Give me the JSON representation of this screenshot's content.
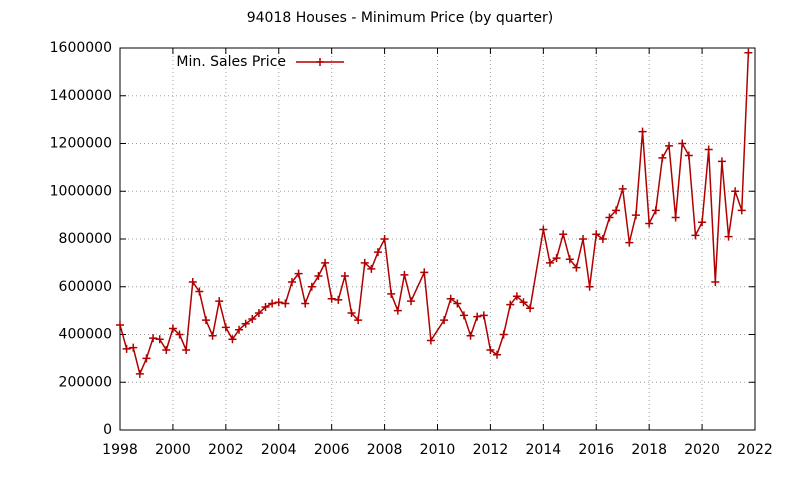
{
  "chart_data": {
    "type": "line",
    "title": "94018 Houses - Minimum Price (by quarter)",
    "x": [
      1998.0,
      1998.25,
      1998.5,
      1998.75,
      1999.0,
      1999.25,
      1999.5,
      1999.75,
      2000.0,
      2000.25,
      2000.5,
      2000.75,
      2001.0,
      2001.25,
      2001.5,
      2001.75,
      2002.0,
      2002.25,
      2002.5,
      2002.75,
      2003.0,
      2003.25,
      2003.5,
      2003.75,
      2004.0,
      2004.25,
      2004.5,
      2004.75,
      2005.0,
      2005.25,
      2005.5,
      2005.75,
      2006.0,
      2006.25,
      2006.5,
      2006.75,
      2007.0,
      2007.25,
      2007.5,
      2007.75,
      2008.0,
      2008.25,
      2008.5,
      2008.75,
      2009.0,
      2009.5,
      2009.75,
      2010.25,
      2010.5,
      2010.75,
      2011.0,
      2011.25,
      2011.5,
      2011.75,
      2012.0,
      2012.25,
      2012.5,
      2012.75,
      2013.0,
      2013.25,
      2013.5,
      2014.0,
      2014.25,
      2014.5,
      2014.75,
      2015.0,
      2015.25,
      2015.5,
      2015.75,
      2016.0,
      2016.25,
      2016.5,
      2016.75,
      2017.0,
      2017.25,
      2017.5,
      2017.75,
      2018.0,
      2018.25,
      2018.5,
      2018.75,
      2019.0,
      2019.25,
      2019.5,
      2019.75,
      2020.0,
      2020.25,
      2020.5,
      2020.75,
      2021.0,
      2021.25,
      2021.5,
      2021.75
    ],
    "series": [
      {
        "name": "Min. Sales Price",
        "color": "#b00000",
        "values": [
          440000,
          340000,
          345000,
          235000,
          300000,
          385000,
          380000,
          335000,
          425000,
          400000,
          335000,
          620000,
          580000,
          460000,
          395000,
          540000,
          430000,
          380000,
          420000,
          445000,
          465000,
          490000,
          515000,
          530000,
          535000,
          530000,
          620000,
          655000,
          530000,
          600000,
          645000,
          700000,
          550000,
          545000,
          645000,
          490000,
          460000,
          700000,
          675000,
          745000,
          800000,
          570000,
          500000,
          650000,
          540000,
          660000,
          375000,
          460000,
          550000,
          530000,
          480000,
          395000,
          475000,
          480000,
          335000,
          315000,
          400000,
          525000,
          560000,
          535000,
          510000,
          840000,
          700000,
          720000,
          820000,
          715000,
          680000,
          800000,
          600000,
          820000,
          800000,
          890000,
          920000,
          1010000,
          785000,
          900000,
          1250000,
          865000,
          920000,
          1140000,
          1190000,
          890000,
          1200000,
          1150000,
          815000,
          870000,
          1175000,
          620000,
          1125000,
          810000,
          1000000,
          920000,
          1580000
        ]
      }
    ],
    "xlim": [
      1998,
      2022
    ],
    "xticks": [
      1998,
      2000,
      2002,
      2004,
      2006,
      2008,
      2010,
      2012,
      2014,
      2016,
      2018,
      2020,
      2022
    ],
    "ylim": [
      0,
      1600000
    ],
    "yticks": [
      0,
      200000,
      400000,
      600000,
      800000,
      1000000,
      1200000,
      1400000,
      1600000
    ],
    "grid": true,
    "legend": "top-left"
  }
}
